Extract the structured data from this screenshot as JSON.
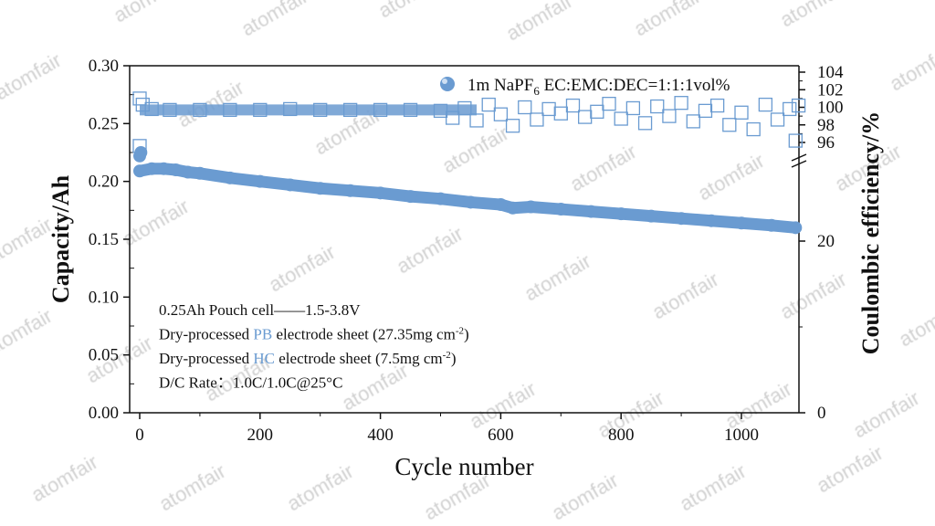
{
  "chart_data": {
    "type": "scatter",
    "xlabel": "Cycle number",
    "ylabel_left": "Capacity/Ah",
    "ylabel_right": "Coulombic efficiency/%",
    "xlim": [
      0,
      1100
    ],
    "ylim_left": [
      0,
      0.3
    ],
    "ylim_right_segments": [
      [
        0,
        30
      ],
      [
        94.5,
        104.8
      ]
    ],
    "right_axis_break": true,
    "x_ticks": [
      "0",
      "200",
      "400",
      "600",
      "800",
      "1000"
    ],
    "x_tick_values": [
      0,
      200,
      400,
      600,
      800,
      1000
    ],
    "y_left_ticks": [
      "0.00",
      "0.05",
      "0.10",
      "0.15",
      "0.20",
      "0.25",
      "0.30"
    ],
    "y_left_tick_values": [
      0,
      0.05,
      0.1,
      0.15,
      0.2,
      0.25,
      0.3
    ],
    "y_right_ticks": [
      "0",
      "20",
      "96",
      "98",
      "100",
      "102",
      "104"
    ],
    "y_right_tick_values": [
      0,
      20,
      96,
      98,
      100,
      102,
      104
    ],
    "legend": {
      "label": "1m NaPF",
      "subscript": "6",
      "label_suffix": "  EC:EMC:DEC=1:1:1vol%",
      "placement": "top-right"
    },
    "series_color": "#6a9bd1",
    "grid": false,
    "series": [
      {
        "axis": "left",
        "marker": "filled-circle",
        "points": [
          [
            0,
            0.222
          ],
          [
            2,
            0.225
          ],
          [
            0,
            0.209
          ],
          [
            20,
            0.211
          ],
          [
            40,
            0.211
          ],
          [
            60,
            0.21
          ],
          [
            80,
            0.208
          ],
          [
            100,
            0.207
          ],
          [
            150,
            0.203
          ],
          [
            200,
            0.2
          ],
          [
            250,
            0.197
          ],
          [
            300,
            0.194
          ],
          [
            350,
            0.192
          ],
          [
            400,
            0.19
          ],
          [
            450,
            0.187
          ],
          [
            500,
            0.185
          ],
          [
            550,
            0.182
          ],
          [
            600,
            0.18
          ],
          [
            620,
            0.177
          ],
          [
            650,
            0.178
          ],
          [
            700,
            0.176
          ],
          [
            750,
            0.174
          ],
          [
            800,
            0.172
          ],
          [
            850,
            0.17
          ],
          [
            900,
            0.168
          ],
          [
            950,
            0.166
          ],
          [
            1000,
            0.164
          ],
          [
            1050,
            0.162
          ],
          [
            1090,
            0.16
          ]
        ]
      },
      {
        "axis": "right",
        "marker": "open-square",
        "points": [
          [
            0,
            95.6
          ],
          [
            0,
            101.0
          ],
          [
            5,
            100.3
          ],
          [
            20,
            99.8
          ],
          [
            50,
            99.7
          ],
          [
            100,
            99.7
          ],
          [
            150,
            99.7
          ],
          [
            200,
            99.7
          ],
          [
            250,
            99.8
          ],
          [
            300,
            99.7
          ],
          [
            350,
            99.7
          ],
          [
            400,
            99.7
          ],
          [
            450,
            99.7
          ],
          [
            500,
            99.6
          ],
          [
            520,
            98.8
          ],
          [
            540,
            99.9
          ],
          [
            560,
            98.5
          ],
          [
            580,
            100.3
          ],
          [
            600,
            99.2
          ],
          [
            620,
            97.9
          ],
          [
            640,
            100.0
          ],
          [
            660,
            98.6
          ],
          [
            680,
            99.8
          ],
          [
            700,
            99.3
          ],
          [
            720,
            100.2
          ],
          [
            740,
            98.9
          ],
          [
            760,
            99.5
          ],
          [
            780,
            100.4
          ],
          [
            800,
            98.7
          ],
          [
            820,
            99.9
          ],
          [
            840,
            98.2
          ],
          [
            860,
            100.1
          ],
          [
            880,
            99.0
          ],
          [
            900,
            100.5
          ],
          [
            920,
            98.4
          ],
          [
            940,
            99.6
          ],
          [
            960,
            100.2
          ],
          [
            980,
            98.0
          ],
          [
            1000,
            99.4
          ],
          [
            1020,
            97.5
          ],
          [
            1040,
            100.3
          ],
          [
            1060,
            98.6
          ],
          [
            1080,
            99.8
          ],
          [
            1090,
            96.2
          ],
          [
            1095,
            100.2
          ]
        ]
      }
    ],
    "annotations": [
      {
        "parts": [
          "0.25Ah Pouch cell——1.5-3.8V"
        ]
      },
      {
        "parts": [
          "Dry-processed ",
          "PB",
          " electrode sheet (27.35mg cm",
          "-2",
          ")"
        ]
      },
      {
        "parts": [
          "Dry-processed ",
          "HC",
          " electrode sheet (7.5mg cm",
          "-2",
          ")"
        ]
      },
      {
        "parts": [
          "D/C Rate：1.0C/1.0C@25°C"
        ]
      }
    ]
  },
  "watermark": "atomfair"
}
